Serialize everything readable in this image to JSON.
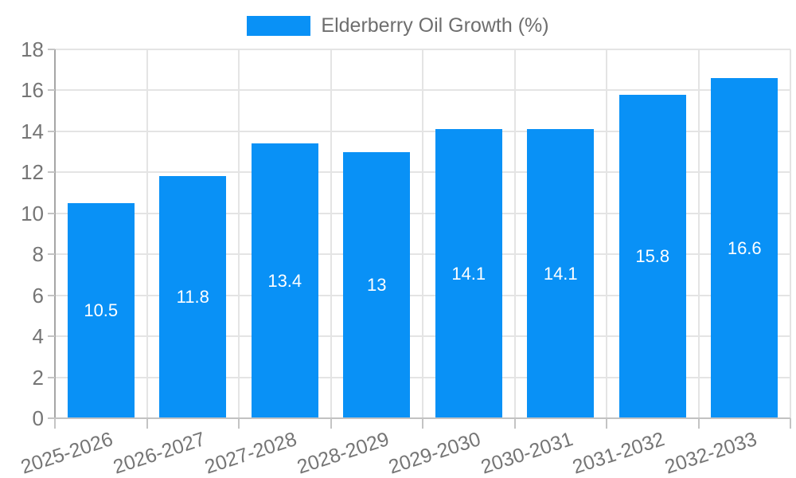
{
  "legend": {
    "label": "Elderberry Oil Growth (%)"
  },
  "chart_data": {
    "type": "bar",
    "title": "",
    "series_name": "Elderberry Oil Growth (%)",
    "categories": [
      "2025-2026",
      "2026-2027",
      "2027-2028",
      "2028-2029",
      "2029-2030",
      "2030-2031",
      "2031-2032",
      "2032-2033"
    ],
    "values": [
      10.5,
      11.8,
      13.4,
      13,
      14.1,
      14.1,
      15.8,
      16.6
    ],
    "value_labels": [
      "10.5",
      "11.8",
      "13.4",
      "13",
      "14.1",
      "14.1",
      "15.8",
      "16.6"
    ],
    "xlabel": "",
    "ylabel": "",
    "ylim": [
      0,
      18
    ],
    "y_ticks": [
      0,
      2,
      4,
      6,
      8,
      10,
      12,
      14,
      16,
      18
    ],
    "grid": true,
    "legend_position": "top-center",
    "colors": {
      "bar": "#0991F6",
      "bar_value_text": "#ffffff",
      "axis_text": "#757575",
      "legend_text": "#6e6e6e",
      "gridline": "#e4e4e4",
      "y_axis_line": "#a6a6a6",
      "x_axis_line": "#c2c2c2",
      "tick_mark": "#c4c4c4",
      "background": "#ffffff"
    }
  }
}
